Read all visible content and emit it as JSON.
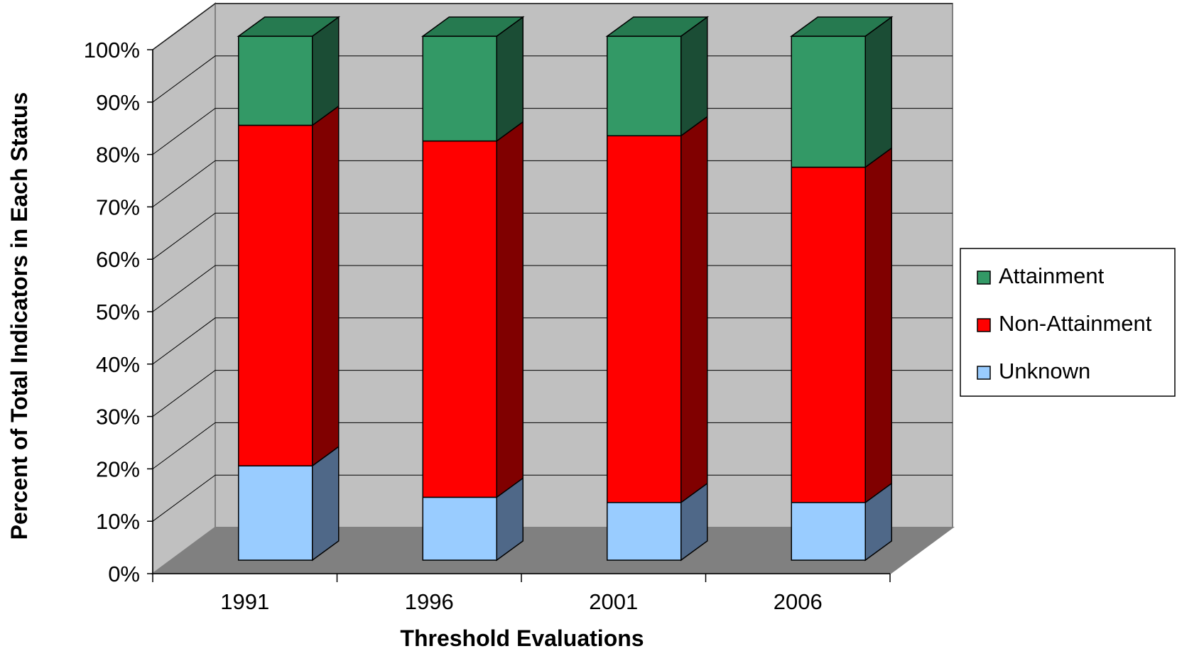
{
  "chart_data": {
    "type": "bar",
    "stacked": true,
    "percent_stacked": true,
    "three_d": true,
    "categories": [
      "1991",
      "1996",
      "2001",
      "2006"
    ],
    "series": [
      {
        "name": "Unknown",
        "values": [
          18,
          12,
          11,
          11
        ],
        "color": "#99CCFF",
        "side_color": "#4F6888"
      },
      {
        "name": "Non-Attainment",
        "values": [
          65,
          68,
          70,
          64
        ],
        "color": "#FF0000",
        "side_color": "#800000"
      },
      {
        "name": "Attainment",
        "values": [
          17,
          20,
          19,
          25
        ],
        "color": "#339966",
        "side_color": "#1B4D35"
      }
    ],
    "xlabel": "Threshold Evaluations",
    "ylabel": "Percent of Total Indicators in Each Status",
    "yticks": [
      "0%",
      "10%",
      "20%",
      "30%",
      "40%",
      "50%",
      "60%",
      "70%",
      "80%",
      "90%",
      "100%"
    ],
    "ylim": [
      0,
      100
    ],
    "grid": true,
    "legend_position": "right",
    "legend_order": [
      "Attainment",
      "Non-Attainment",
      "Unknown"
    ],
    "wall_color": "#C0C0C0",
    "floor_color": "#808080"
  }
}
